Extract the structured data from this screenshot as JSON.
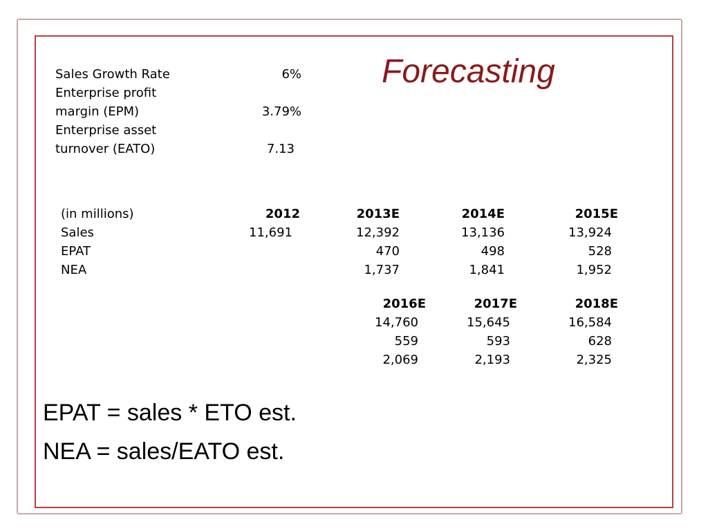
{
  "slide": {
    "title": "Forecasting",
    "colors": {
      "title": "#8b1a1a",
      "frame_inner": "#b7403e",
      "frame_outer": "#c9a7a7"
    }
  },
  "parameters": [
    {
      "label_lines": [
        "Sales Growth Rate"
      ],
      "value": "6%"
    },
    {
      "label_lines": [
        "Enterprise profit",
        "margin (EPM)"
      ],
      "value": "3.79%"
    },
    {
      "label_lines": [
        "Enterprise asset",
        "turnover (EATO)"
      ],
      "value": "7.13"
    }
  ],
  "table1": {
    "unit_label": "(in millions)",
    "row_labels": [
      "Sales",
      "EPAT",
      "NEA"
    ],
    "headers": [
      "2012",
      "2013E",
      "2014E",
      "2015E"
    ],
    "rows": [
      [
        "11,691",
        "12,392",
        "13,136",
        "13,924"
      ],
      [
        "",
        "470",
        "498",
        "528"
      ],
      [
        "",
        "1,737",
        "1,841",
        "1,952"
      ]
    ]
  },
  "table2": {
    "headers": [
      "2016E",
      "2017E",
      "2018E"
    ],
    "rows": [
      [
        "14,760",
        "15,645",
        "16,584"
      ],
      [
        "559",
        "593",
        "628"
      ],
      [
        "2,069",
        "2,193",
        "2,325"
      ]
    ]
  },
  "formulas": [
    "EPAT = sales * ETO est.",
    "NEA = sales/EATO est."
  ]
}
